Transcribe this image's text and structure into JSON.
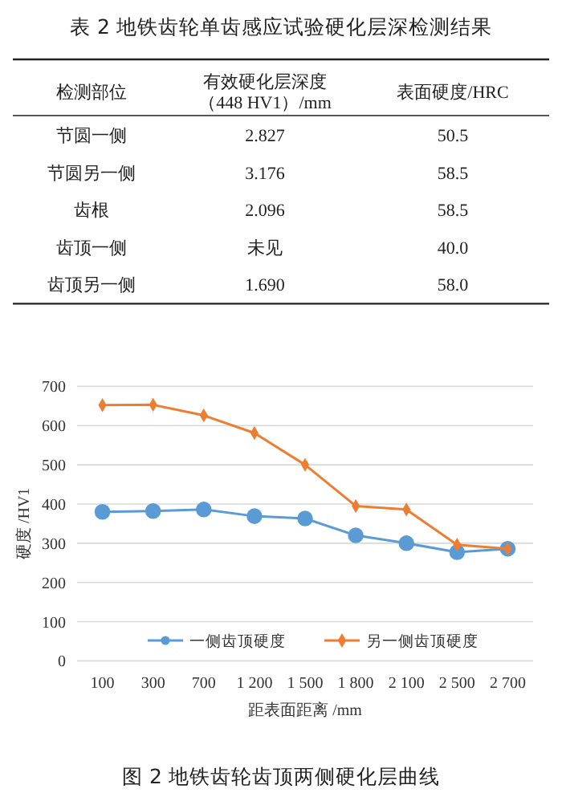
{
  "chart_data": [
    {
      "type": "other",
      "title": "表 2 地铁齿轮单齿感应试验硬化层深检测结果",
      "annotations": [
        "检测部位",
        "有效硬化层深度（448 HV1）/mm",
        "表面硬度/HRC",
        "节圆一侧",
        "2.827",
        "50.5",
        "节圆另一侧",
        "3.176",
        "58.5",
        "齿根",
        "2.096",
        "58.5",
        "齿顶一侧",
        "未见",
        "40.0",
        "齿顶另一侧",
        "1.690",
        "58.0"
      ]
    },
    {
      "type": "line",
      "title": "图 2 地铁齿轮齿顶两侧硬化层曲线",
      "xlabel": "距表面距离 /mm",
      "ylabel": "硬度 /HV1",
      "categories": [
        "100",
        "300",
        "700",
        "1 200",
        "1 500",
        "1 800",
        "2 100",
        "2 500",
        "2 700"
      ],
      "ylim": [
        0,
        700
      ],
      "yticks": [
        0,
        100,
        200,
        300,
        400,
        500,
        600,
        700
      ],
      "grid": "y",
      "legend": "bottom",
      "marker": "circle",
      "series": [
        {
          "name": "一侧齿顶硬度",
          "color": "#5b9bd5",
          "values": [
            380,
            382,
            386,
            369,
            363,
            320,
            300,
            277,
            286
          ]
        },
        {
          "name": "另一侧齿顶硬度",
          "color": "#ed7d31",
          "marker": "diamond",
          "values": [
            652,
            653,
            626,
            581,
            500,
            395,
            386,
            296,
            286
          ]
        }
      ]
    }
  ]
}
